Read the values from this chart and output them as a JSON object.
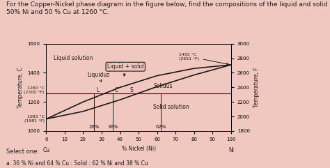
{
  "title_line1": "For the Copper-Nickel phase diagram in the figure below, find the ",
  "title_bold": "compositions",
  "title_line1b": " of the liquid and solid phases for a nominal composition of",
  "title_line2": "50% Ni and 50 % Cu at 1260 °C.",
  "title_fontsize": 6.5,
  "xlabel": "% Nickel (Ni)",
  "ylabel_left": "Temperature, C",
  "ylabel_right": "Temperature, F",
  "xlim": [
    0,
    100
  ],
  "ylim_C": [
    1000,
    1550
  ],
  "ylim_F": [
    1800,
    3000
  ],
  "x_ticks": [
    0,
    10,
    20,
    30,
    40,
    50,
    60,
    70,
    80,
    90,
    100
  ],
  "y_ticks_C": [
    1000,
    1200,
    1400,
    1600
  ],
  "y_ticks_F": [
    1800,
    2000,
    2200,
    2400,
    2600,
    2800,
    3000
  ],
  "liquidus_x": [
    0,
    20,
    40,
    60,
    80,
    100
  ],
  "liquidus_y": [
    1083,
    1200,
    1300,
    1380,
    1430,
    1455
  ],
  "solidus_x": [
    0,
    20,
    40,
    60,
    80,
    100
  ],
  "solidus_y": [
    1083,
    1135,
    1215,
    1305,
    1385,
    1455
  ],
  "hline_y": 1260,
  "L_x": 28,
  "S_x": 46,
  "C_x": 38,
  "vline_x_26": 26,
  "vline_x_36": 36,
  "vline_x_62": 62,
  "annot_26_pct": "26%",
  "annot_36_pct": "36%",
  "annot_62_pct": "62%",
  "bg_color": "#f0c8c0",
  "chart_bg": "#f0c8c0",
  "line_color": "#1a1a1a",
  "text_color": "#1a1a1a",
  "annot_1260C": "1260 °C\n(2300 °F)",
  "annot_1083C": "1083 °C\n(1981 °F)",
  "annot_1455C": "1455 °C\n(2651 °F)",
  "label_liquid": "Liquid solution",
  "label_liquid_solid": "Liquid + solid",
  "label_liquidus": "Liquidus",
  "label_solidus": "Solidus",
  "label_solid": "Solid solution",
  "select_text": "Select one:",
  "select_answer": "a. 36 % Ni and 64 % Cu : Solid : 62 % Ni and 38 % Cu"
}
